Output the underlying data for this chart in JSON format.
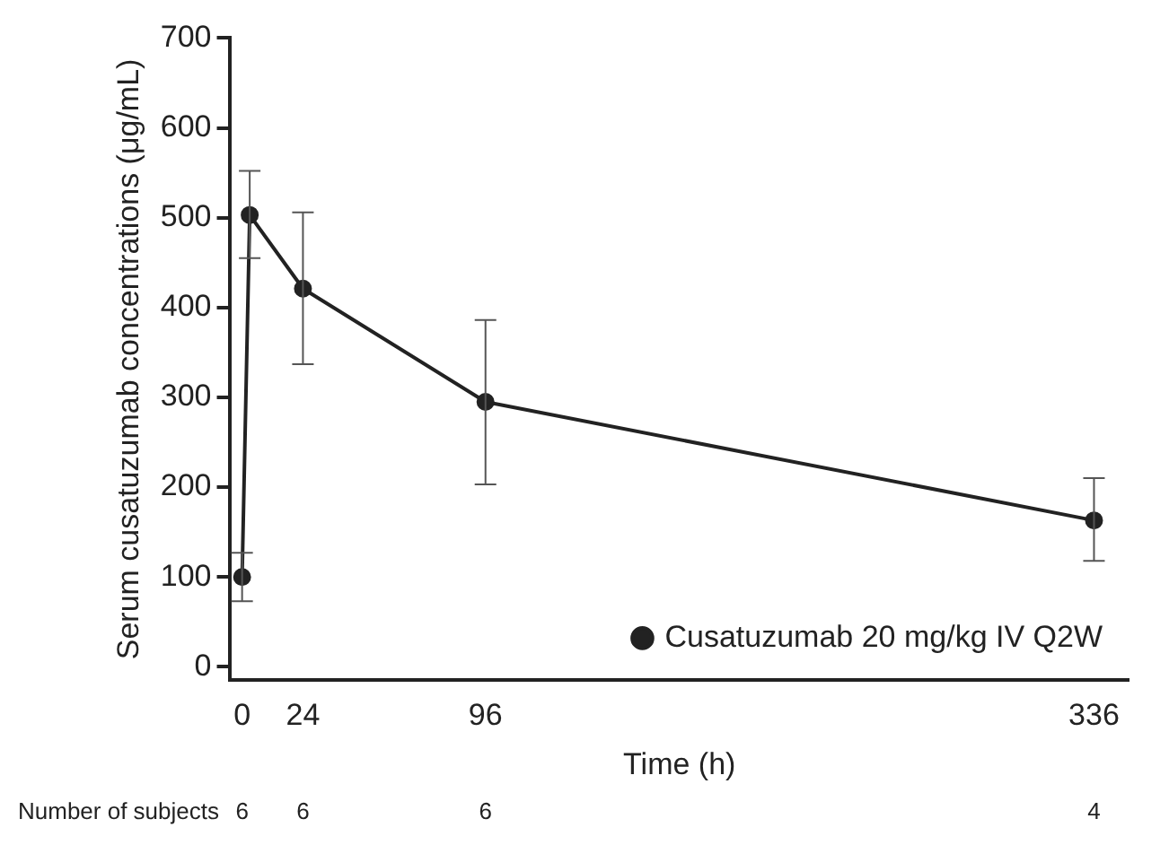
{
  "chart_data": {
    "type": "line",
    "xlabel": "Time (h)",
    "ylabel": "Serum cusatuzumab concentrations (μg/mL)",
    "series": [
      {
        "name": "Cusatuzumab 20 mg/kg IV Q2W",
        "color": "#222222",
        "x": [
          0,
          3,
          24,
          96,
          336
        ],
        "values": [
          100,
          503,
          421,
          295,
          163
        ],
        "errors": [
          [
            73,
            127
          ],
          [
            455,
            552
          ],
          [
            337,
            506
          ],
          [
            203,
            386
          ],
          [
            118,
            210
          ]
        ]
      }
    ],
    "xlim": [
      -5,
      350
    ],
    "xticks": [
      0,
      24,
      96,
      336
    ],
    "ylim": [
      -15,
      700
    ],
    "yticks": [
      0,
      100,
      200,
      300,
      400,
      500,
      600,
      700
    ],
    "grid": false,
    "legend": "bottom right",
    "marker": "circle",
    "line_style": "solid",
    "annotations": [
      "Number of subjects",
      "6",
      "6",
      "6",
      "4"
    ]
  }
}
